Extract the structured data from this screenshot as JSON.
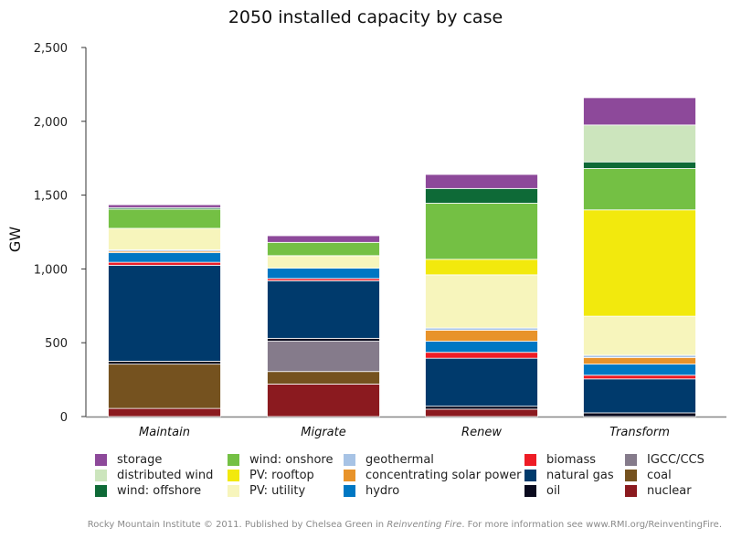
{
  "chart_data": {
    "type": "bar",
    "stacked": true,
    "title": "2050 installed capacity by case",
    "xlabel": "",
    "ylabel": "GW",
    "ylim": [
      0,
      2500
    ],
    "yticks": [
      0,
      500,
      1000,
      1500,
      2000,
      2500
    ],
    "ytick_labels": [
      "0",
      "500",
      "1,000",
      "1,500",
      "2,000",
      "2,500"
    ],
    "grid": false,
    "legend_position": "bottom",
    "categories": [
      "Maintain",
      "Migrate",
      "Renew",
      "Transform"
    ],
    "series": [
      {
        "name": "nuclear",
        "color": "#8b1a1f",
        "values": [
          55,
          220,
          50,
          0
        ]
      },
      {
        "name": "coal",
        "color": "#75521f",
        "values": [
          300,
          85,
          0,
          0
        ]
      },
      {
        "name": "IGCC/CCS",
        "color": "#857b8b",
        "values": [
          0,
          205,
          0,
          0
        ]
      },
      {
        "name": "oil",
        "color": "#0a0a1e",
        "values": [
          20,
          20,
          20,
          25
        ]
      },
      {
        "name": "natural gas",
        "color": "#003a6c",
        "values": [
          650,
          390,
          325,
          230
        ]
      },
      {
        "name": "biomass",
        "color": "#ee1c25",
        "values": [
          20,
          15,
          40,
          25
        ]
      },
      {
        "name": "hydro",
        "color": "#0077c3",
        "values": [
          65,
          70,
          75,
          75
        ]
      },
      {
        "name": "concentrating solar power",
        "color": "#e8932a",
        "values": [
          10,
          0,
          75,
          45
        ]
      },
      {
        "name": "geothermal",
        "color": "#a7c3e5",
        "values": [
          10,
          0,
          15,
          15
        ]
      },
      {
        "name": "PV: utility",
        "color": "#f7f5bc",
        "values": [
          145,
          85,
          360,
          265
        ]
      },
      {
        "name": "PV: rooftop",
        "color": "#f2e90d",
        "values": [
          0,
          0,
          105,
          720
        ]
      },
      {
        "name": "wind: onshore",
        "color": "#74c044",
        "values": [
          130,
          90,
          380,
          280
        ]
      },
      {
        "name": "wind: offshore",
        "color": "#0e6a37",
        "values": [
          10,
          0,
          100,
          45
        ]
      },
      {
        "name": "distributed wind",
        "color": "#cce5bd",
        "values": [
          0,
          0,
          0,
          250
        ]
      },
      {
        "name": "storage",
        "color": "#8d499a",
        "values": [
          20,
          45,
          95,
          185
        ]
      }
    ]
  },
  "legend": {
    "columns": [
      [
        "storage",
        "distributed wind",
        "wind: offshore"
      ],
      [
        "wind: onshore",
        "PV: rooftop",
        "PV: utility"
      ],
      [
        "geothermal",
        "concentrating solar power",
        "hydro"
      ],
      [
        "biomass",
        "natural gas",
        "oil"
      ],
      [
        "IGCC/CCS",
        "coal",
        "nuclear"
      ]
    ]
  },
  "footer": {
    "prefix": "Rocky Mountain Institute © 2011. Published by Chelsea Green in ",
    "book": "Reinventing Fire",
    "suffix": ". For more information see www.RMI.org/ReinventingFire."
  }
}
